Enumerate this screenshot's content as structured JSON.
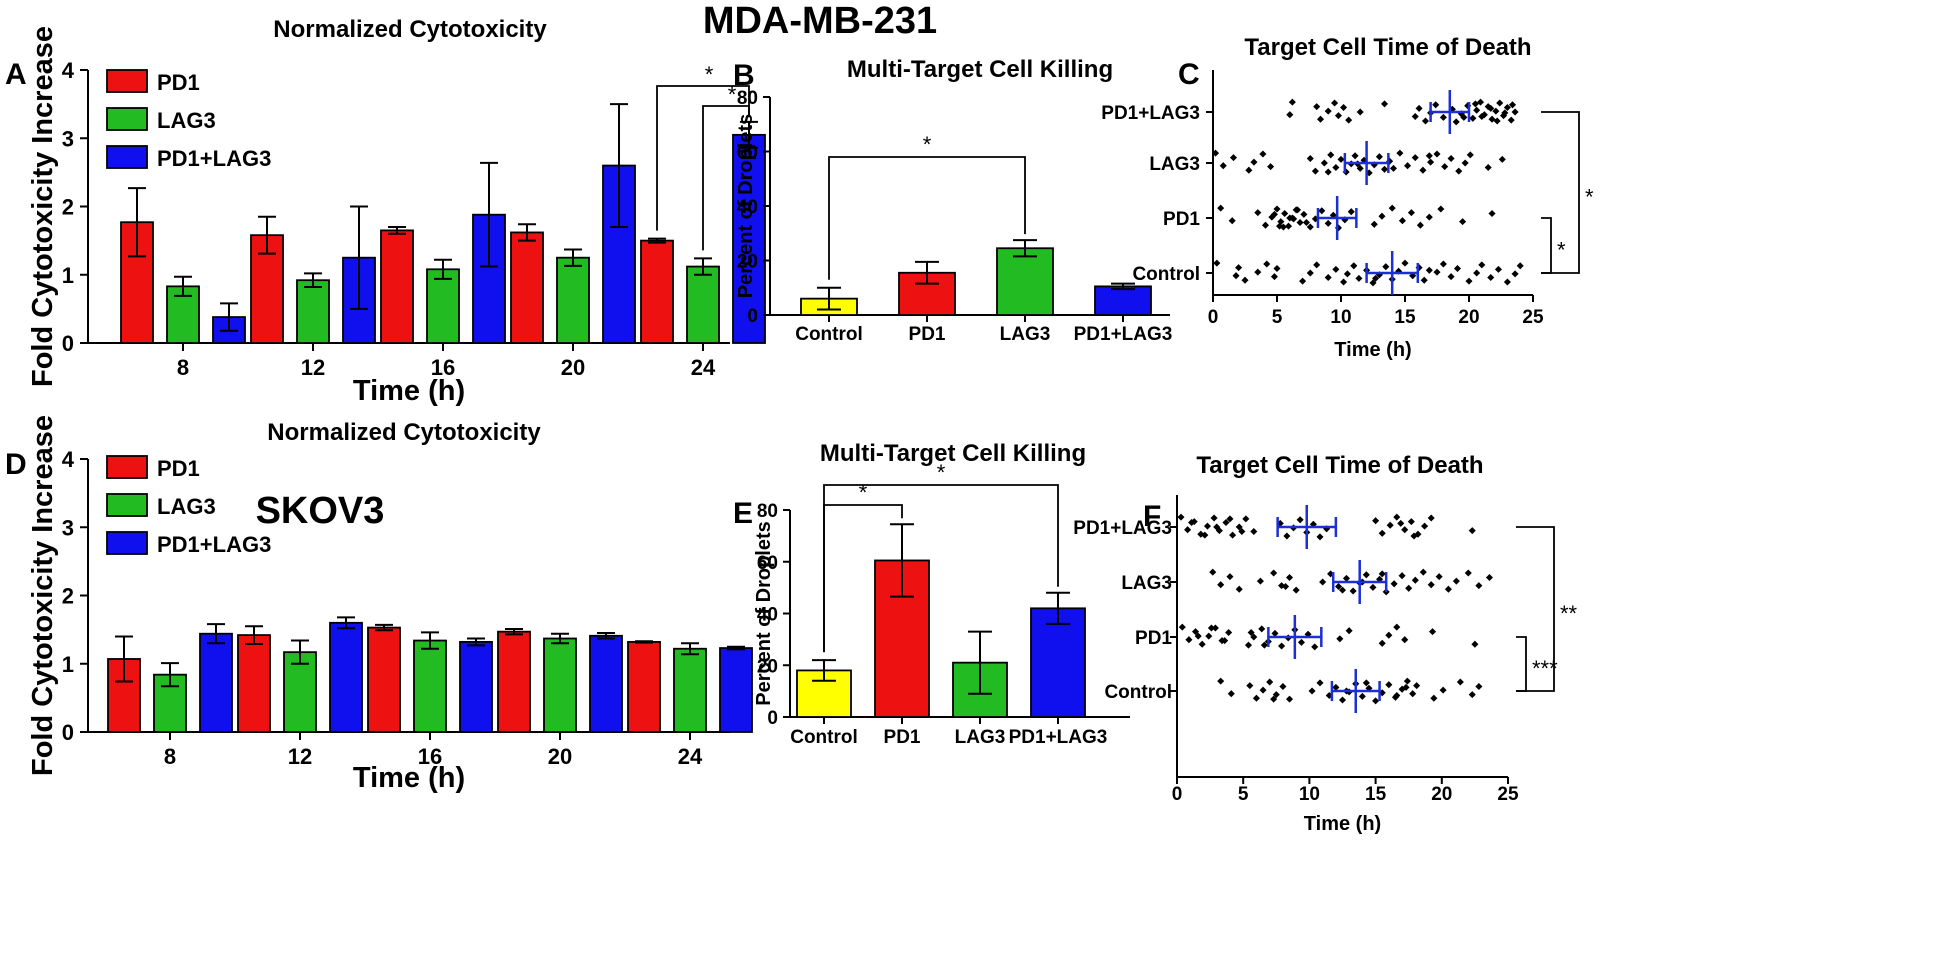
{
  "figure": {
    "top_title": "MDA-MB-231",
    "bottom_title": "SKOV3"
  },
  "colors": {
    "PD1": "#ee1111",
    "LAG3": "#22bb22",
    "PD1+LAG3": "#1010ee",
    "Control": "#ffff00",
    "median": "#1c2fd6"
  },
  "chart_data": [
    {
      "id": "A",
      "panel": "A",
      "type": "bar",
      "title": "Normalized Cytotoxicity",
      "xlabel": "Time (h)",
      "ylabel": "Fold Cytotoxicity Increase",
      "ylim": [
        0,
        4
      ],
      "yticks": [
        0,
        1,
        2,
        3,
        4
      ],
      "categories": [
        "8",
        "12",
        "16",
        "20",
        "24"
      ],
      "legend": "top-left",
      "series": [
        {
          "name": "PD1",
          "values": [
            1.77,
            1.58,
            1.65,
            1.62,
            1.5
          ],
          "errors": [
            0.5,
            0.27,
            0.05,
            0.12,
            0.03
          ]
        },
        {
          "name": "LAG3",
          "values": [
            0.83,
            0.92,
            1.08,
            1.25,
            1.12
          ],
          "errors": [
            0.14,
            0.1,
            0.14,
            0.12,
            0.12
          ]
        },
        {
          "name": "PD1+LAG3",
          "values": [
            0.38,
            1.25,
            1.88,
            2.6,
            3.05
          ],
          "errors": [
            0.2,
            0.75,
            0.76,
            0.9,
            0.19
          ]
        }
      ],
      "significance": [
        {
          "label": "*",
          "from": "PD1@24",
          "to": "PD1+LAG3@24"
        },
        {
          "label": "*",
          "from": "LAG3@24",
          "to": "PD1+LAG3@24"
        }
      ]
    },
    {
      "id": "B",
      "panel": "B",
      "type": "bar",
      "title": "Multi-Target Cell Killing",
      "xlabel": "",
      "ylabel": "Percent of Droplets",
      "ylim": [
        0,
        80
      ],
      "yticks": [
        0,
        20,
        40,
        60,
        80
      ],
      "categories": [
        "Control",
        "PD1",
        "LAG3",
        "PD1+LAG3"
      ],
      "values": [
        6,
        15.5,
        24.5,
        10.5
      ],
      "errors": [
        4,
        4,
        3,
        1
      ],
      "significance": [
        {
          "label": "*",
          "from": "Control",
          "to": "LAG3"
        }
      ]
    },
    {
      "id": "C",
      "panel": "C",
      "type": "scatter",
      "title": "Target Cell Time of Death",
      "xlabel": "Time (h)",
      "ylabel": "",
      "xlim": [
        0,
        25
      ],
      "xticks": [
        0,
        5,
        10,
        15,
        20,
        25
      ],
      "groups": [
        "PD1+LAG3",
        "LAG3",
        "PD1",
        "Control"
      ],
      "medians": [
        18.5,
        12,
        9.7,
        14
      ],
      "error_halfwidths": [
        1.5,
        1.7,
        1.5,
        2
      ],
      "points": [
        [
          6.2,
          6.0,
          8.1,
          8.4,
          9.0,
          9.5,
          9.8,
          10.2,
          10.6,
          11.5,
          13.4,
          15.8,
          16.1,
          16.6,
          17.0,
          17.4,
          18.0,
          18.7,
          19.0,
          19.4,
          19.9,
          20.3,
          20.6,
          20.9,
          21.2,
          21.5,
          21.8,
          22.1,
          22.4,
          22.7,
          23.0,
          23.3,
          23.6,
          20.5,
          21.0,
          21.7,
          22.2,
          22.8,
          23.4,
          19.6
        ],
        [
          0.2,
          0.8,
          1.6,
          2.8,
          3.2,
          3.9,
          4.5,
          7.6,
          8.0,
          8.7,
          9.2,
          9.6,
          10.0,
          10.4,
          10.8,
          11.1,
          11.5,
          11.8,
          12.2,
          12.6,
          13.0,
          13.4,
          13.8,
          14.6,
          15.2,
          15.8,
          16.4,
          17.0,
          17.5,
          18.1,
          18.6,
          19.2,
          19.7,
          20.1,
          21.5,
          22.6,
          9.0,
          11.3,
          16.9,
          14.1
        ],
        [
          0.6,
          1.5,
          3.5,
          4.1,
          4.6,
          5.0,
          5.3,
          5.6,
          5.9,
          6.2,
          6.5,
          6.8,
          7.1,
          7.6,
          8.0,
          8.5,
          9.0,
          9.4,
          9.8,
          10.3,
          10.8,
          12.6,
          13.2,
          14.0,
          14.8,
          15.5,
          16.2,
          16.9,
          17.8,
          19.5,
          21.8,
          5.2,
          6.0,
          6.6,
          7.3,
          4.8,
          5.5,
          6.3
        ],
        [
          0.3,
          1.8,
          2.0,
          2.5,
          3.5,
          4.2,
          4.8,
          5.0,
          7.0,
          7.6,
          8.1,
          9.0,
          9.6,
          10.2,
          10.5,
          11.0,
          11.4,
          12.0,
          12.5,
          13.0,
          13.5,
          14.0,
          14.5,
          15.0,
          15.6,
          16.1,
          16.5,
          17.5,
          18.0,
          18.6,
          19.1,
          20.0,
          20.6,
          21.0,
          21.7,
          22.3,
          23.0,
          23.6,
          24.0,
          12.7,
          16.9
        ]
      ],
      "significance": [
        {
          "label": "*",
          "from": "PD1+LAG3",
          "to": "Control"
        },
        {
          "label": "*",
          "from": "PD1",
          "to": "Control"
        }
      ]
    },
    {
      "id": "D",
      "panel": "D",
      "type": "bar",
      "title": "Normalized Cytotoxicity",
      "xlabel": "Time (h)",
      "ylabel": "Fold Cytotoxicity Increase",
      "ylim": [
        0,
        4
      ],
      "yticks": [
        0,
        1,
        2,
        3,
        4
      ],
      "categories": [
        "8",
        "12",
        "16",
        "20",
        "24"
      ],
      "legend": "top-left",
      "series": [
        {
          "name": "PD1",
          "values": [
            1.07,
            1.42,
            1.53,
            1.47,
            1.32
          ],
          "errors": [
            0.33,
            0.13,
            0.04,
            0.04,
            0.01
          ]
        },
        {
          "name": "LAG3",
          "values": [
            0.84,
            1.17,
            1.34,
            1.37,
            1.22
          ],
          "errors": [
            0.17,
            0.17,
            0.12,
            0.07,
            0.08
          ]
        },
        {
          "name": "PD1+LAG3",
          "values": [
            1.44,
            1.6,
            1.32,
            1.41,
            1.23
          ],
          "errors": [
            0.14,
            0.08,
            0.05,
            0.04,
            0.02
          ]
        }
      ]
    },
    {
      "id": "E",
      "panel": "E",
      "type": "bar",
      "title": "Multi-Target Cell Killing",
      "xlabel": "",
      "ylabel": "Percent of Droplets",
      "ylim": [
        0,
        80
      ],
      "yticks": [
        0,
        20,
        40,
        60,
        80
      ],
      "categories": [
        "Control",
        "PD1",
        "LAG3",
        "PD1+LAG3"
      ],
      "values": [
        18,
        60.5,
        21,
        42
      ],
      "errors": [
        4,
        14,
        12,
        6
      ],
      "significance": [
        {
          "label": "*",
          "from": "Control",
          "to": "PD1"
        },
        {
          "label": "*",
          "from": "Control",
          "to": "PD1+LAG3"
        }
      ]
    },
    {
      "id": "F",
      "panel": "F",
      "type": "scatter",
      "title": "Target Cell Time of Death",
      "xlabel": "Time (h)",
      "ylabel": "",
      "xlim": [
        0,
        25
      ],
      "xticks": [
        0,
        5,
        10,
        15,
        20,
        25
      ],
      "groups": [
        "PD1+LAG3",
        "LAG3",
        "PD1",
        "Control"
      ],
      "medians": [
        9.8,
        13.8,
        8.9,
        13.5
      ],
      "error_halfwidths": [
        2.2,
        2,
        2,
        1.8
      ],
      "points": [
        [
          0.3,
          0.8,
          1.3,
          1.8,
          2.3,
          2.8,
          3.2,
          3.7,
          4.2,
          4.7,
          5.2,
          5.8,
          7.8,
          8.3,
          8.8,
          9.3,
          9.8,
          10.3,
          10.8,
          11.3,
          15.0,
          15.5,
          16.1,
          16.6,
          17.2,
          17.7,
          18.2,
          18.7,
          19.2,
          22.3,
          1.1,
          2.1,
          3.0,
          4.0,
          4.9,
          16.9,
          17.9
        ],
        [
          2.7,
          3.3,
          4.0,
          4.7,
          6.3,
          7.3,
          7.9,
          8.5,
          9.0,
          11.0,
          11.6,
          12.2,
          12.8,
          13.3,
          13.8,
          14.3,
          14.8,
          15.3,
          15.8,
          16.4,
          17.0,
          17.5,
          18.0,
          18.6,
          19.2,
          19.8,
          20.5,
          21.1,
          22.0,
          22.8,
          23.6,
          12.5,
          14.0,
          15.5,
          8.2
        ],
        [
          0.4,
          0.9,
          1.4,
          1.9,
          2.4,
          2.9,
          3.4,
          3.9,
          5.4,
          5.8,
          6.4,
          6.9,
          7.4,
          7.9,
          8.4,
          8.9,
          9.4,
          9.9,
          10.4,
          12.3,
          13.0,
          15.5,
          16.0,
          16.6,
          17.2,
          19.3,
          22.5,
          1.6,
          2.6,
          3.6,
          5.6,
          6.6
        ],
        [
          3.3,
          4.1,
          5.5,
          6.0,
          6.5,
          7.0,
          7.5,
          8.0,
          8.5,
          10.2,
          10.8,
          11.5,
          12.0,
          12.5,
          13.0,
          13.5,
          14.0,
          14.5,
          15.0,
          15.5,
          16.0,
          16.5,
          17.0,
          17.4,
          17.8,
          18.1,
          19.4,
          20.1,
          21.4,
          22.3,
          22.8,
          7.3,
          12.8,
          14.3,
          16.6,
          17.3
        ]
      ],
      "significance": [
        {
          "label": "**",
          "from": "PD1+LAG3",
          "to": "Control"
        },
        {
          "label": "***",
          "from": "PD1",
          "to": "Control"
        }
      ]
    }
  ]
}
